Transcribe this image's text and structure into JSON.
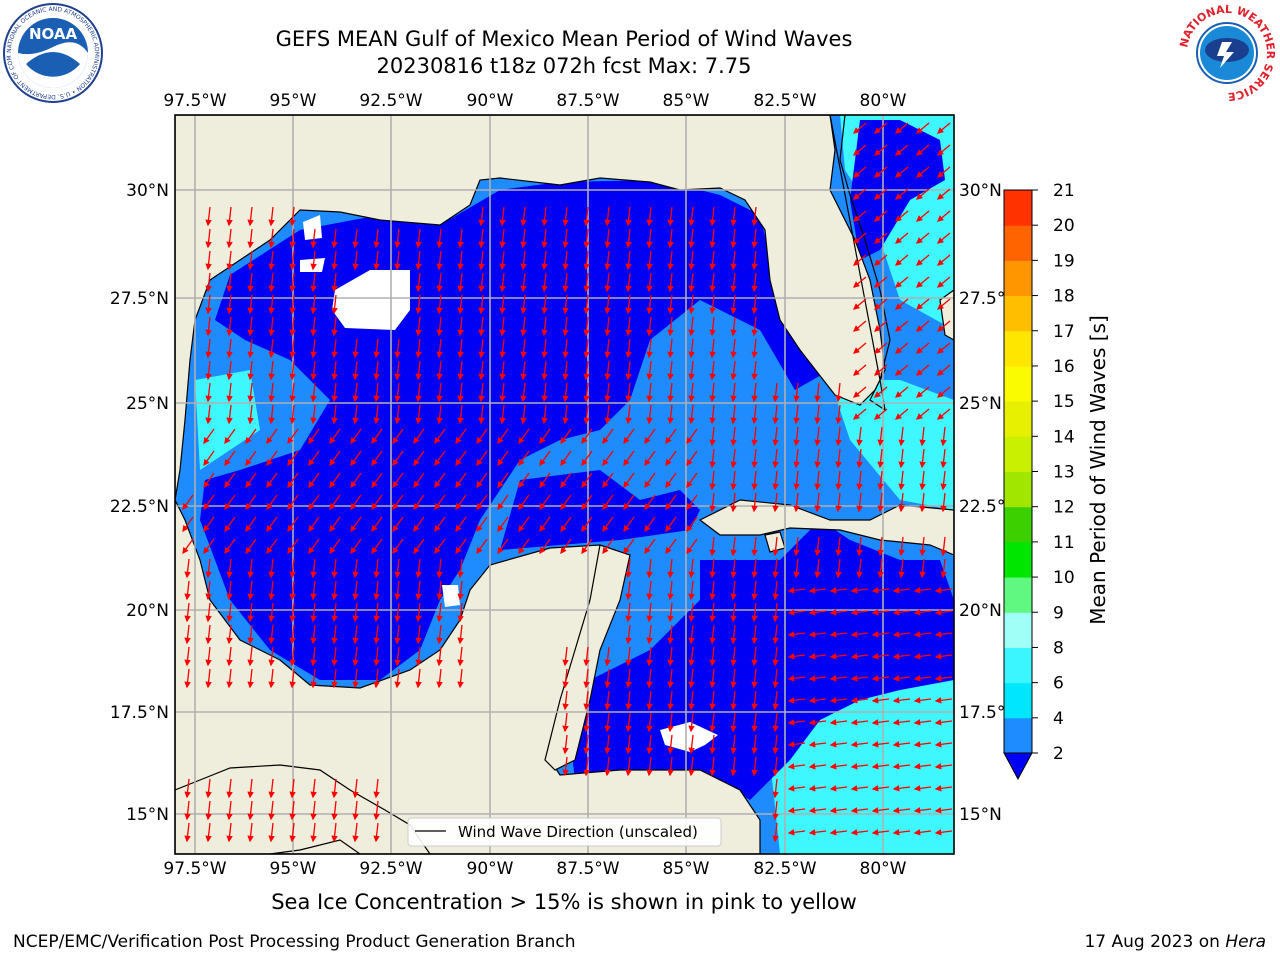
{
  "title": {
    "line1": "GEFS MEAN Gulf of Mexico Mean Period of Wind Waves",
    "line2": "20230816 t18z 072h fcst   Max: 7.75"
  },
  "map": {
    "lon_ticks": [
      "97.5°W",
      "95°W",
      "92.5°W",
      "90°W",
      "87.5°W",
      "85°W",
      "82.5°W",
      "80°W"
    ],
    "lat_ticks_left": [
      "30°N",
      "27.5°N",
      "25°N",
      "22.5°N",
      "20°N",
      "17.5°N",
      "15°N"
    ],
    "lat_ticks_right": [
      "30°N",
      "27.5°",
      "25°N",
      "22.5°",
      "20°N",
      "17.5°",
      "15°N"
    ],
    "legend_label": "Wind Wave Direction (unscaled)",
    "colors": {
      "land": "#efeddc",
      "level_2_4": "#0000f5",
      "level_4_6": "#1e8cff",
      "level_6_8": "#3ff8ff",
      "arrows": "#ff0000",
      "grid": "#b0b0b0"
    }
  },
  "colorbar": {
    "label": "Mean Period of Wind Waves [s]",
    "ticks": [
      "2",
      "4",
      "6",
      "8",
      "9",
      "10",
      "11",
      "12",
      "13",
      "14",
      "15",
      "16",
      "17",
      "18",
      "19",
      "20",
      "21"
    ],
    "colors": [
      "#1e8cff",
      "#00e6ff",
      "#3cf6ff",
      "#a0fff7",
      "#60f880",
      "#00e600",
      "#3cd000",
      "#a0e600",
      "#c8f000",
      "#e6f000",
      "#fafa00",
      "#ffe600",
      "#ffbe00",
      "#ff9600",
      "#ff6400",
      "#ff3200",
      "#ff0000"
    ],
    "extend_color": "#0000f5"
  },
  "footer": {
    "ice_note": "Sea Ice Concentration > 15% is shown in pink to yellow",
    "left": "NCEP/EMC/Verification Post Processing Product Generation Branch",
    "right_prefix": "17 Aug 2023 on ",
    "right_italic": "Hera"
  },
  "logos": {
    "noaa_text": "NOAA",
    "noaa_ring": "NATIONAL OCEANIC AND ATMOSPHERIC ADMINISTRATION • U.S. DEPARTMENT OF COMMERCE",
    "nws_ring": "NATIONAL WEATHER SERVICE"
  }
}
